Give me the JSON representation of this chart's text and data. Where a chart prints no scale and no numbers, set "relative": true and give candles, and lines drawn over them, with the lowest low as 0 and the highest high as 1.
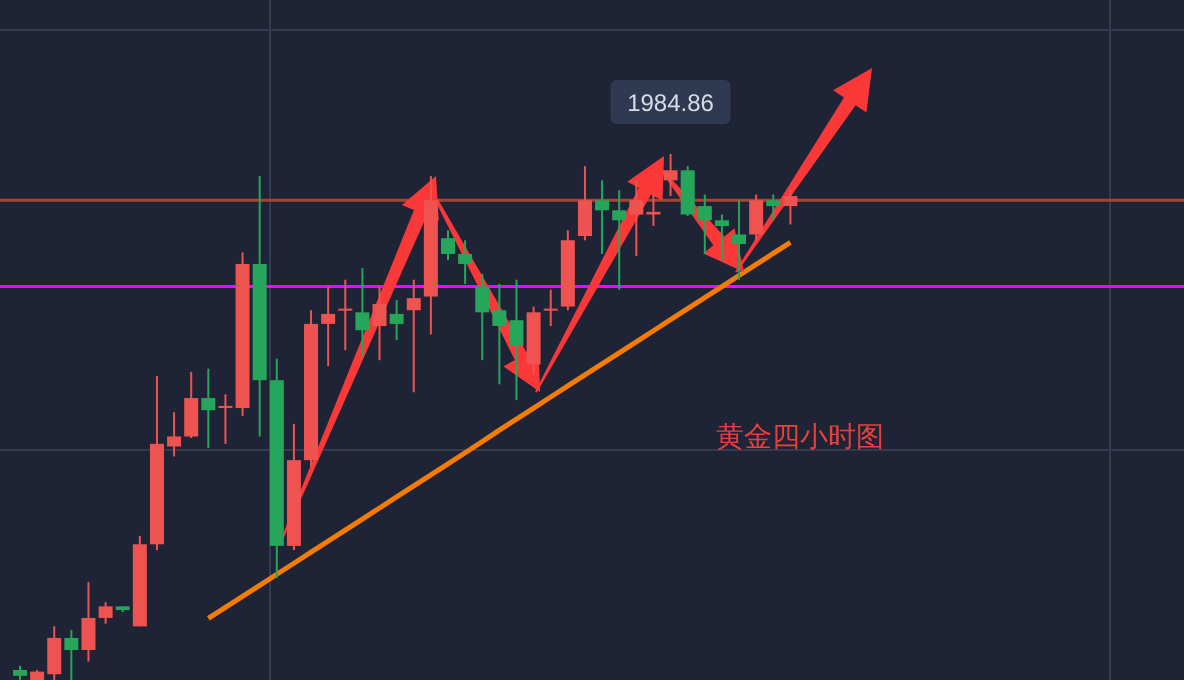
{
  "chart_data": {
    "type": "candlestick",
    "relative": true,
    "grid": true,
    "categories": [
      null,
      null,
      null,
      null,
      null,
      null,
      null,
      null,
      null,
      null,
      null,
      null,
      null,
      null,
      null,
      null,
      null,
      null,
      null,
      null,
      null,
      null,
      null,
      null,
      null,
      null,
      null,
      null,
      null,
      null,
      null,
      null,
      null,
      null,
      null,
      null,
      null,
      null,
      null,
      null,
      null,
      null,
      null,
      null,
      null,
      null
    ],
    "ohlc": [
      [
        0.019,
        0.027,
        0,
        0.008
      ],
      [
        0,
        0.019,
        0,
        0.016
      ],
      [
        0.011,
        0.102,
        0,
        0.08
      ],
      [
        0.08,
        0.095,
        0,
        0.057
      ],
      [
        0.057,
        0.186,
        0.035,
        0.118
      ],
      [
        0.118,
        0.148,
        0.107,
        0.14
      ],
      [
        0.14,
        0.14,
        0.129,
        0.133
      ],
      [
        0.102,
        0.274,
        0.102,
        0.258
      ],
      [
        0.258,
        0.578,
        0.247,
        0.449
      ],
      [
        0.444,
        0.509,
        0.425,
        0.463
      ],
      [
        0.463,
        0.586,
        0.46,
        0.536
      ],
      [
        0.536,
        0.592,
        0.441,
        0.513
      ],
      [
        0.521,
        0.543,
        0.449,
        0.521
      ],
      [
        0.517,
        0.813,
        0.502,
        0.791
      ],
      [
        0.791,
        0.958,
        0.463,
        0.57
      ],
      [
        0.57,
        0.611,
        0.194,
        0.255
      ],
      [
        0.255,
        0.487,
        0.247,
        0.418
      ],
      [
        0.418,
        0.703,
        0.406,
        0.677
      ],
      [
        0.677,
        0.748,
        0.597,
        0.696
      ],
      [
        0.703,
        0.761,
        0.627,
        0.706
      ],
      [
        0.699,
        0.783,
        0.616,
        0.665
      ],
      [
        0.673,
        0.748,
        0.608,
        0.715
      ],
      [
        0.696,
        0.722,
        0.646,
        0.677
      ],
      [
        0.703,
        0.761,
        0.547,
        0.726
      ],
      [
        0.729,
        0.958,
        0.657,
        0.912
      ],
      [
        0.84,
        0.855,
        0.798,
        0.81
      ],
      [
        0.81,
        0.836,
        0.753,
        0.791
      ],
      [
        0.748,
        0.772,
        0.608,
        0.699
      ],
      [
        0.703,
        0.753,
        0.562,
        0.673
      ],
      [
        0.684,
        0.761,
        0.532,
        0.635
      ],
      [
        0.6,
        0.71,
        0.581,
        0.699
      ],
      [
        0.703,
        0.742,
        0.673,
        0.706
      ],
      [
        0.71,
        0.855,
        0.703,
        0.836
      ],
      [
        0.844,
        0.977,
        0.836,
        0.912
      ],
      [
        0.912,
        0.95,
        0.81,
        0.893
      ],
      [
        0.893,
        0.931,
        0.742,
        0.874
      ],
      [
        0.885,
        0.95,
        0.806,
        0.912
      ],
      [
        0.885,
        0.923,
        0.863,
        0.89
      ],
      [
        0.95,
        1,
        0.92,
        0.969
      ],
      [
        0.969,
        0.977,
        0.882,
        0.885
      ],
      [
        0.901,
        0.923,
        0.81,
        0.874
      ],
      [
        0.874,
        0.885,
        0.798,
        0.863
      ],
      [
        0.847,
        0.912,
        0.761,
        0.829
      ],
      [
        0.847,
        0.923,
        0.836,
        0.912
      ],
      [
        0.912,
        0.923,
        0.874,
        0.901
      ],
      [
        0.901,
        0.931,
        0.866,
        0.92
      ]
    ],
    "colors": [
      "#26a65b",
      "#ef5350",
      "#ef5350",
      "#26a65b",
      "#ef5350",
      "#ef5350",
      "#26a65b",
      "#ef5350",
      "#ef5350",
      "#ef5350",
      "#ef5350",
      "#26a65b",
      "#ef5350",
      "#ef5350",
      "#26a65b",
      "#26a65b",
      "#ef5350",
      "#ef5350",
      "#ef5350",
      "#ef5350",
      "#26a65b",
      "#ef5350",
      "#26a65b",
      "#ef5350",
      "#ef5350",
      "#26a65b",
      "#26a65b",
      "#26a65b",
      "#26a65b",
      "#26a65b",
      "#ef5350",
      "#ef5350",
      "#ef5350",
      "#ef5350",
      "#26a65b",
      "#26a65b",
      "#ef5350",
      "#ef5350",
      "#ef5350",
      "#26a65b",
      "#26a65b",
      "#26a65b",
      "#26a65b",
      "#ef5350",
      "#26a65b",
      "#ef5350"
    ],
    "series": [
      {
        "type": "line",
        "color": "#f57c00",
        "values": [
          null,
          null,
          null,
          null,
          null,
          null,
          null,
          null,
          null,
          null,
          null,
          0.117,
          0.138,
          0.159,
          0.18,
          0.201,
          0.222,
          0.243,
          0.264,
          0.285,
          0.306,
          0.327,
          0.348,
          0.369,
          0.39,
          0.411,
          0.432,
          0.453,
          0.475,
          0.496,
          0.517,
          0.538,
          0.559,
          0.58,
          0.601,
          0.622,
          0.643,
          0.664,
          0.685,
          0.706,
          0.727,
          0.748,
          0.769,
          0.79,
          0.811,
          0.832
        ]
      }
    ],
    "ref_lines": [
      {
        "axis": "y",
        "value": 0.912,
        "color": "#a8432f"
      },
      {
        "axis": "y",
        "value": 0.748,
        "color": "#ff00ff"
      }
    ],
    "annotations": [
      "1984.86",
      "黄金四小时图"
    ]
  }
}
